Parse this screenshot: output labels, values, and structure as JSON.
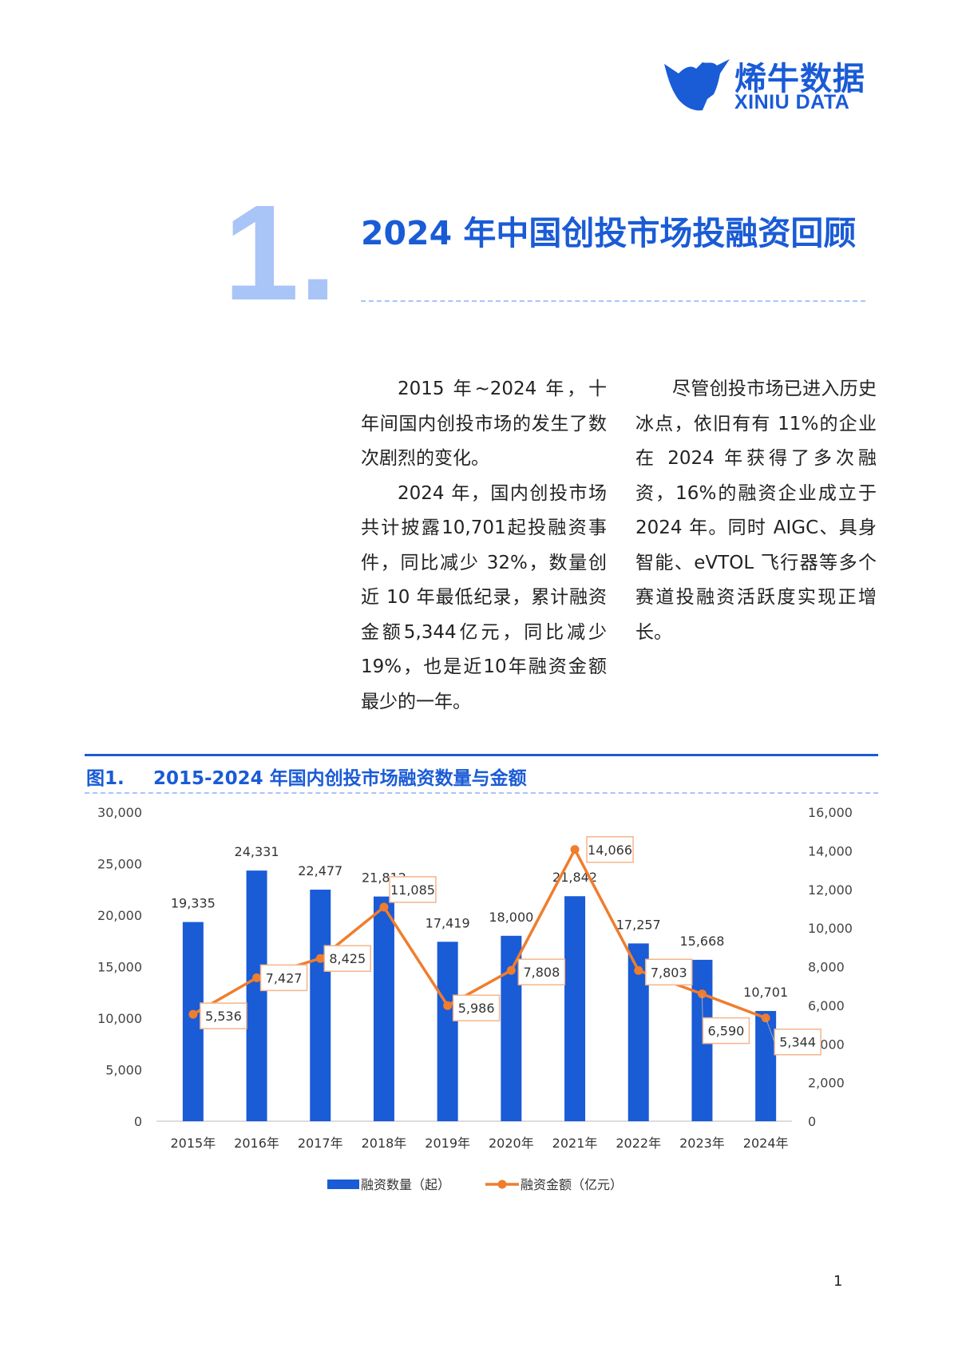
{
  "brand": {
    "name_cn": "烯牛数据",
    "name_en": "XINIU DATA",
    "logo_color": "#1a5bd6"
  },
  "section": {
    "number": "1.",
    "title": "2024 年中国创投市场投融资回顾"
  },
  "body": {
    "col1": [
      "2015 年~2024 年，十年间国内创投市场的发生了数次剧烈的变化。",
      "2024 年，国内创投市场共计披露10,701起投融资事件，同比减少 32%，数量创近 10 年最低纪录，累计融资金额5,344亿元，同比减少19%，也是近10年融资金额最少的一年。"
    ],
    "col2": [
      "尽管创投市场已进入历史冰点，依旧有有 11%的企业在 2024 年获得了多次融资，16%的融资企业成立于2024 年。同时 AIGC、具身智能、eVTOL 飞行器等多个赛道投融资活跃度实现正增长。"
    ]
  },
  "figure": {
    "label": "图1.",
    "title": "2015-2024 年国内创投市场融资数量与金额"
  },
  "chart_data": {
    "type": "bar",
    "categories": [
      "2015年",
      "2016年",
      "2017年",
      "2018年",
      "2019年",
      "2020年",
      "2021年",
      "2022年",
      "2023年",
      "2024年"
    ],
    "series": [
      {
        "name": "融资数量（起）",
        "type": "bar",
        "axis": "left",
        "color": "#1a5bd6",
        "values": [
          19335,
          24331,
          22477,
          21812,
          17419,
          18000,
          21842,
          17257,
          15668,
          10701
        ],
        "labels": [
          "19,335",
          "24,331",
          "22,477",
          "21,812",
          "17,419",
          "18,000",
          "21,842",
          "17,257",
          "15,668",
          "10,701"
        ]
      },
      {
        "name": "融资金额（亿元）",
        "type": "line",
        "axis": "right",
        "color": "#ef7d2d",
        "values": [
          5536,
          7427,
          8425,
          11085,
          5986,
          7808,
          14066,
          7803,
          6590,
          5344
        ],
        "labels": [
          "5,536",
          "7,427",
          "8,425",
          "11,085",
          "5,986",
          "7,808",
          "14,066",
          "7,803",
          "6,590",
          "5,344"
        ]
      }
    ],
    "y_left": {
      "min": 0,
      "max": 30000,
      "ticks": [
        "0",
        "5,000",
        "10,000",
        "15,000",
        "20,000",
        "25,000",
        "30,000"
      ]
    },
    "y_right": {
      "min": 0,
      "max": 16000,
      "ticks": [
        "0",
        "2,000",
        "4,000",
        "6,000",
        "8,000",
        "10,000",
        "12,000",
        "14,000",
        "16,000"
      ]
    },
    "grid": false,
    "legend": "bottom-center",
    "label_box_color": "#f5b58a"
  },
  "footer": {
    "page": "1"
  }
}
